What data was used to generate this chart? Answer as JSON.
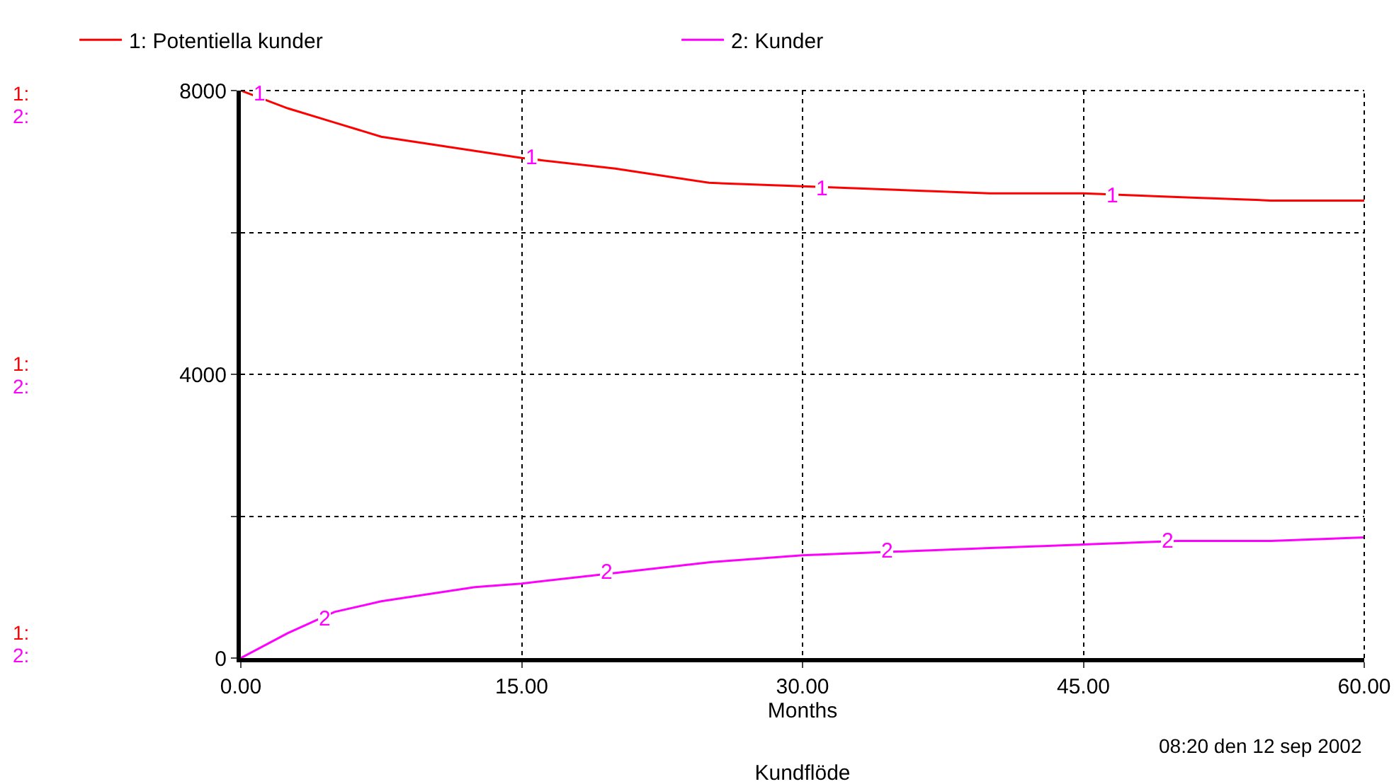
{
  "chart_data": {
    "type": "line",
    "title": "Kundflöde",
    "xlabel": "Months",
    "x": [
      0,
      2.5,
      5,
      7.5,
      10,
      12.5,
      15,
      20,
      25,
      30,
      35,
      40,
      45,
      50,
      55,
      60
    ],
    "series": [
      {
        "name": "1: Potentiella kunder",
        "color": "#ff0000",
        "values": [
          8000,
          7750,
          7550,
          7350,
          7250,
          7150,
          7050,
          6900,
          6700,
          6650,
          6600,
          6550,
          6550,
          6500,
          6450,
          6450
        ]
      },
      {
        "name": "2: Kunder",
        "color": "#ff00ff",
        "values": [
          0,
          350,
          650,
          800,
          900,
          1000,
          1050,
          1200,
          1350,
          1450,
          1500,
          1550,
          1600,
          1650,
          1650,
          1700
        ]
      }
    ],
    "xlim": [
      0,
      60
    ],
    "xticks": [
      {
        "value": 0,
        "label": "0.00"
      },
      {
        "value": 15,
        "label": "15.00"
      },
      {
        "value": 30,
        "label": "30.00"
      },
      {
        "value": 45,
        "label": "45.00"
      },
      {
        "value": 60,
        "label": "60.00"
      }
    ],
    "ylim": [
      0,
      8000
    ],
    "yticks": [
      0,
      {
        "value": 2000,
        "label": null
      },
      4000,
      {
        "value": 6000,
        "label": null
      },
      8000
    ],
    "grid": true,
    "legend": "top",
    "marker": "none",
    "line_style": "solid",
    "annotations": [
      {
        "text": "1",
        "x": 1,
        "y": 7950
      },
      {
        "text": "1",
        "x": 15.5,
        "y": 7060
      },
      {
        "text": "1",
        "x": 31,
        "y": 6620
      },
      {
        "text": "1",
        "x": 46.5,
        "y": 6510
      },
      {
        "text": "2",
        "x": 4.5,
        "y": 540
      },
      {
        "text": "2",
        "x": 19.5,
        "y": 1200
      },
      {
        "text": "2",
        "x": 34.5,
        "y": 1500
      },
      {
        "text": "2",
        "x": 49.5,
        "y": 1640
      },
      "08:20 den 12 sep 2002",
      "1:",
      "2:",
      "1:",
      "2:",
      "1:",
      "2:"
    ]
  }
}
